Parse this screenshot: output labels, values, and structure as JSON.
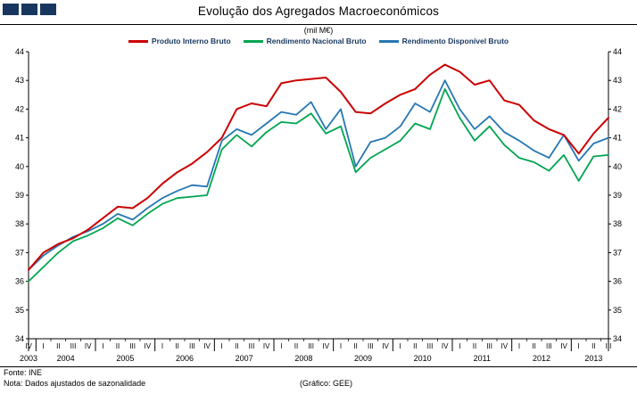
{
  "logo": {
    "name": "three-squares-logo",
    "color": "#17375E",
    "squares": 3
  },
  "chart_data": {
    "type": "line",
    "title": "Evolução dos Agregados Macroeconómicos",
    "subtitle": "(mil M€)",
    "ylim": [
      34,
      44
    ],
    "ytick_step": 1,
    "grid": false,
    "legend_position": "top",
    "y_axis_sides": [
      "left",
      "right"
    ],
    "last_label_color": "#7030A0",
    "x_quarters": [
      "IV",
      "I",
      "II",
      "III",
      "IV",
      "I",
      "II",
      "III",
      "IV",
      "I",
      "II",
      "III",
      "IV",
      "I",
      "II",
      "III",
      "IV",
      "I",
      "II",
      "III",
      "IV",
      "I",
      "II",
      "III",
      "IV",
      "I",
      "II",
      "III",
      "IV",
      "I",
      "II",
      "III",
      "IV",
      "I",
      "II",
      "III",
      "IV",
      "I",
      "II",
      "III"
    ],
    "years": [
      {
        "label": "2003",
        "center": 0
      },
      {
        "label": "2004",
        "center": 2.5
      },
      {
        "label": "2005",
        "center": 6.5
      },
      {
        "label": "2006",
        "center": 10.5
      },
      {
        "label": "2007",
        "center": 14.5
      },
      {
        "label": "2008",
        "center": 18.5
      },
      {
        "label": "2009",
        "center": 22.5
      },
      {
        "label": "2010",
        "center": 26.5
      },
      {
        "label": "2011",
        "center": 30.5
      },
      {
        "label": "2012",
        "center": 34.5
      },
      {
        "label": "2013",
        "center": 38
      }
    ],
    "series": [
      {
        "name": "Produto Interno Bruto",
        "color": "#CC0000",
        "values": [
          36.4,
          37.0,
          37.3,
          37.5,
          37.8,
          38.2,
          38.6,
          38.55,
          38.9,
          39.4,
          39.8,
          40.1,
          40.5,
          41.0,
          42.0,
          42.2,
          42.1,
          42.9,
          43.0,
          43.05,
          43.1,
          42.6,
          41.9,
          41.85,
          42.2,
          42.5,
          42.7,
          43.2,
          43.55,
          43.3,
          42.85,
          43.0,
          42.3,
          42.15,
          41.6,
          41.3,
          41.1,
          40.45,
          41.15,
          41.7
        ]
      },
      {
        "name": "Rendimento Nacional Bruto",
        "color": "#00A550",
        "values": [
          36.0,
          36.5,
          37.0,
          37.4,
          37.6,
          37.85,
          38.2,
          37.95,
          38.35,
          38.7,
          38.9,
          38.95,
          39.0,
          40.6,
          41.1,
          40.7,
          41.2,
          41.55,
          41.5,
          41.85,
          41.15,
          41.4,
          39.8,
          40.3,
          40.6,
          40.9,
          41.5,
          41.3,
          42.7,
          41.7,
          40.9,
          41.4,
          40.75,
          40.3,
          40.15,
          39.85,
          40.4,
          39.5,
          40.35,
          40.4
        ]
      },
      {
        "name": "Rendimento Disponível Bruto",
        "color": "#2577B4",
        "values": [
          36.4,
          36.9,
          37.25,
          37.55,
          37.75,
          38.0,
          38.35,
          38.15,
          38.55,
          38.9,
          39.15,
          39.35,
          39.3,
          40.9,
          41.3,
          41.1,
          41.5,
          41.9,
          41.8,
          42.25,
          41.3,
          42.0,
          40.0,
          40.85,
          41.0,
          41.4,
          42.2,
          41.9,
          43.0,
          42.0,
          41.3,
          41.75,
          41.2,
          40.9,
          40.55,
          40.3,
          41.1,
          40.2,
          40.8,
          41.0
        ]
      }
    ]
  },
  "legend": [
    {
      "label": "Produto Interno Bruto",
      "color": "#CC0000"
    },
    {
      "label": "Rendimento Nacional Bruto",
      "color": "#00A550"
    },
    {
      "label": "Rendimento Disponível Bruto",
      "color": "#2577B4"
    }
  ],
  "footer": {
    "source": "Fonte: INE",
    "note": "Nota: Dados ajustados de sazonalidade",
    "credit": "(Gráfico: GEE)"
  }
}
